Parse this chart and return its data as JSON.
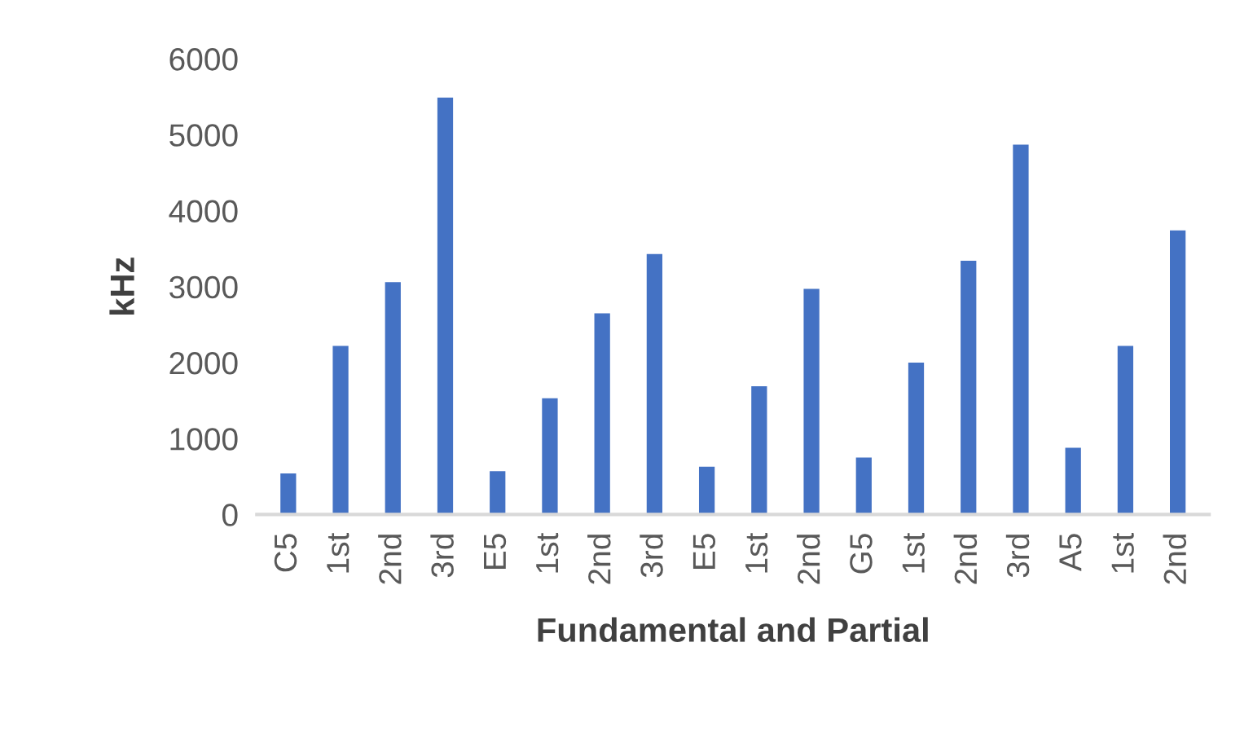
{
  "chart_data": {
    "type": "bar",
    "xlabel": "Fundamental and Partial",
    "ylabel": "kHz",
    "categories": [
      "C5",
      "1st",
      "2nd",
      "3rd",
      "E5",
      "1st",
      "2nd",
      "3rd",
      "E5",
      "1st",
      "2nd",
      "G5",
      "1st",
      "2nd",
      "3rd",
      "A5",
      "1st",
      "2nd"
    ],
    "values": [
      540,
      2220,
      3060,
      5490,
      570,
      1530,
      2650,
      3430,
      630,
      1690,
      2970,
      750,
      2000,
      3340,
      4870,
      880,
      2220,
      3740
    ],
    "color": "#4472c4",
    "ylim": [
      0,
      6000
    ],
    "yticks": [
      0,
      1000,
      2000,
      3000,
      4000,
      5000,
      6000
    ],
    "grid": false
  }
}
